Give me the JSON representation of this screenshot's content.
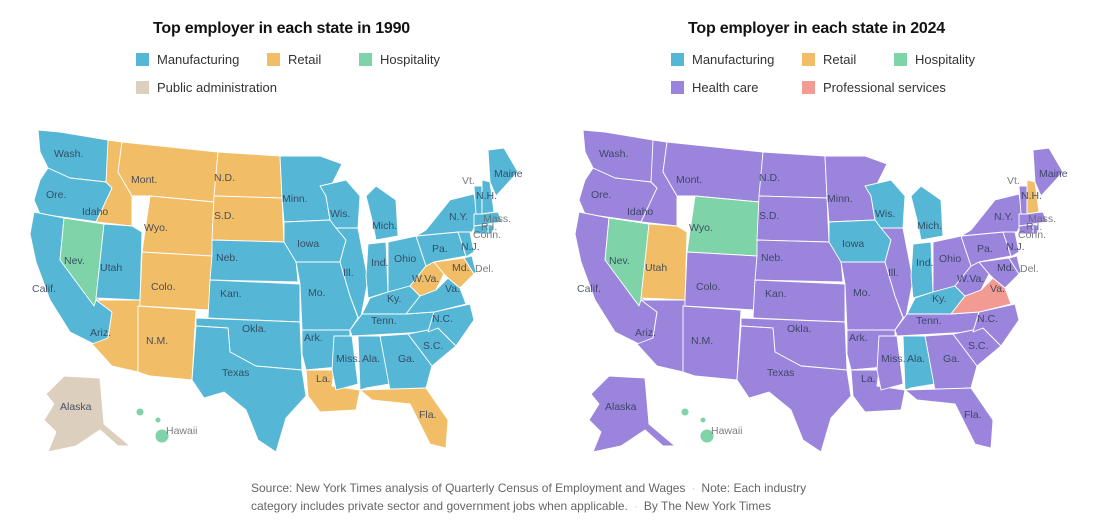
{
  "colors": {
    "Manufacturing": "#55b7d5",
    "Retail": "#f2bd67",
    "Hospitality": "#7fd3a9",
    "Public administration": "#dccfbd",
    "Health care": "#9b84dc",
    "Professional services": "#f29b92"
  },
  "maps": [
    {
      "title": "Top employer in each state in 1990",
      "legend": [
        {
          "label": "Manufacturing",
          "color": "#55b7d5"
        },
        {
          "label": "Retail",
          "color": "#f2bd67"
        },
        {
          "label": "Hospitality",
          "color": "#7fd3a9"
        },
        {
          "label": "Public administration",
          "color": "#dccfbd"
        }
      ],
      "states": {
        "WA": "Manufacturing",
        "OR": "Manufacturing",
        "CA": "Manufacturing",
        "NV": "Hospitality",
        "ID": "Retail",
        "MT": "Retail",
        "WY": "Retail",
        "UT": "Manufacturing",
        "CO": "Retail",
        "AZ": "Retail",
        "NM": "Retail",
        "ND": "Retail",
        "SD": "Retail",
        "NE": "Manufacturing",
        "KS": "Manufacturing",
        "OK": "Manufacturing",
        "TX": "Manufacturing",
        "MN": "Manufacturing",
        "IA": "Manufacturing",
        "MO": "Manufacturing",
        "AR": "Manufacturing",
        "LA": "Retail",
        "WI": "Manufacturing",
        "IL": "Manufacturing",
        "MI": "Manufacturing",
        "IN": "Manufacturing",
        "OH": "Manufacturing",
        "KY": "Manufacturing",
        "TN": "Manufacturing",
        "MS": "Manufacturing",
        "AL": "Manufacturing",
        "GA": "Manufacturing",
        "FL": "Retail",
        "SC": "Manufacturing",
        "NC": "Manufacturing",
        "VA": "Manufacturing",
        "WV": "Retail",
        "MD": "Retail",
        "DE": "Manufacturing",
        "PA": "Manufacturing",
        "NJ": "Manufacturing",
        "NY": "Manufacturing",
        "CT": "Manufacturing",
        "RI": "Manufacturing",
        "MA": "Manufacturing",
        "VT": "Manufacturing",
        "NH": "Manufacturing",
        "ME": "Manufacturing",
        "AK": "Public administration",
        "HI": "Hospitality"
      }
    },
    {
      "title": "Top employer in each state in 2024",
      "legend": [
        {
          "label": "Manufacturing",
          "color": "#55b7d5"
        },
        {
          "label": "Retail",
          "color": "#f2bd67"
        },
        {
          "label": "Hospitality",
          "color": "#7fd3a9"
        },
        {
          "label": "Health care",
          "color": "#9b84dc"
        },
        {
          "label": "Professional services",
          "color": "#f29b92"
        }
      ],
      "states": {
        "WA": "Health care",
        "OR": "Health care",
        "CA": "Health care",
        "NV": "Hospitality",
        "ID": "Health care",
        "MT": "Health care",
        "WY": "Hospitality",
        "UT": "Retail",
        "CO": "Health care",
        "AZ": "Health care",
        "NM": "Health care",
        "ND": "Health care",
        "SD": "Health care",
        "NE": "Health care",
        "KS": "Health care",
        "OK": "Health care",
        "TX": "Health care",
        "MN": "Health care",
        "IA": "Manufacturing",
        "MO": "Health care",
        "AR": "Health care",
        "LA": "Health care",
        "WI": "Manufacturing",
        "IL": "Health care",
        "MI": "Manufacturing",
        "IN": "Manufacturing",
        "OH": "Health care",
        "KY": "Manufacturing",
        "TN": "Health care",
        "MS": "Health care",
        "AL": "Manufacturing",
        "GA": "Health care",
        "FL": "Health care",
        "SC": "Health care",
        "NC": "Health care",
        "VA": "Professional services",
        "WV": "Health care",
        "MD": "Health care",
        "DE": "Health care",
        "PA": "Health care",
        "NJ": "Health care",
        "NY": "Health care",
        "CT": "Health care",
        "RI": "Health care",
        "MA": "Health care",
        "VT": "Health care",
        "NH": "Retail",
        "ME": "Health care",
        "AK": "Health care",
        "HI": "Hospitality"
      }
    }
  ],
  "state_labels": {
    "WA": "Wash.",
    "OR": "Ore.",
    "CA": "Calif.",
    "NV": "Nev.",
    "ID": "Idaho",
    "MT": "Mont.",
    "WY": "Wyo.",
    "UT": "Utah",
    "CO": "Colo.",
    "AZ": "Ariz.",
    "NM": "N.M.",
    "ND": "N.D.",
    "SD": "S.D.",
    "NE": "Neb.",
    "KS": "Kan.",
    "OK": "Okla.",
    "TX": "Texas",
    "MN": "Minn.",
    "IA": "Iowa",
    "MO": "Mo.",
    "AR": "Ark.",
    "LA": "La.",
    "WI": "Wis.",
    "IL": "Ill.",
    "MI": "Mich.",
    "IN": "Ind.",
    "OH": "Ohio",
    "KY": "Ky.",
    "TN": "Tenn.",
    "MS": "Miss.",
    "AL": "Ala.",
    "GA": "Ga.",
    "FL": "Fla.",
    "SC": "S.C.",
    "NC": "N.C.",
    "VA": "Va.",
    "WV": "W.Va.",
    "MD": "Md.",
    "DE": "Del.",
    "PA": "Pa.",
    "NJ": "N.J.",
    "NY": "N.Y.",
    "CT": "Conn.",
    "RI": "R.I.",
    "MA": "Mass.",
    "VT": "Vt.",
    "NH": "N.H.",
    "ME": "Maine",
    "AK": "Alaska",
    "HI": "Hawaii"
  },
  "footer": {
    "source": "Source: New York Times analysis of Quarterly Census of Employment and Wages",
    "note": "Note: Each industry category includes private sector and government jobs when applicable.",
    "byline": "By The New York Times"
  }
}
